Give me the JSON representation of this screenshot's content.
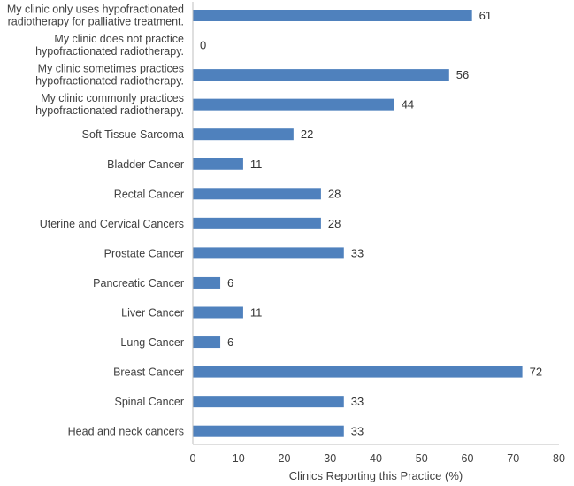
{
  "chart_data": {
    "type": "bar",
    "orientation": "horizontal",
    "categories": [
      [
        "My clinic only uses hypofractionated",
        "radiotherapy for palliative treatment."
      ],
      [
        "My clinic does not practice",
        "hypofractionated radiotherapy."
      ],
      [
        "My clinic sometimes practices",
        "hypofractionated radiotherapy."
      ],
      [
        "My clinic commonly practices",
        "hypofractionated radiotherapy."
      ],
      [
        "Soft Tissue Sarcoma"
      ],
      [
        "Bladder Cancer"
      ],
      [
        "Rectal Cancer"
      ],
      [
        "Uterine and Cervical Cancers"
      ],
      [
        "Prostate Cancer"
      ],
      [
        "Pancreatic Cancer"
      ],
      [
        "Liver Cancer"
      ],
      [
        "Lung Cancer"
      ],
      [
        "Breast Cancer"
      ],
      [
        "Spinal Cancer"
      ],
      [
        "Head and neck cancers"
      ]
    ],
    "values": [
      61,
      0,
      56,
      44,
      22,
      11,
      28,
      28,
      33,
      6,
      11,
      6,
      72,
      33,
      33
    ],
    "xlabel": "Clinics Reporting this Practice (%)",
    "xlim": [
      0,
      80
    ],
    "xticks": [
      0,
      10,
      20,
      30,
      40,
      50,
      60,
      70,
      80
    ],
    "bar_color": "#4f81bd",
    "grid": false,
    "data_labels": true
  }
}
